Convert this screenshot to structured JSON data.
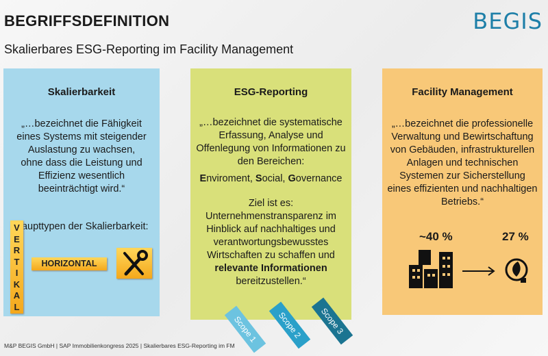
{
  "header": {
    "title": "BEGRIFFSDEFINITION",
    "subtitle": "Skalierbares ESG-Reporting im Facility Management",
    "logo": "BEGIS"
  },
  "panels": {
    "scalability": {
      "heading": "Skalierbarkeit",
      "text": "„…bezeichnet die Fähigkeit eines Systems mit steigender Auslastung zu wachsen, ohne dass die Leistung und Effizienz wesentlich beeinträchtigt wird.“",
      "types_label": "Haupttypen der Skalierbarkeit:",
      "vertical": "VERTIKAL",
      "horizontal": "HORIZONTAL",
      "color": "#a7d8ec"
    },
    "esg": {
      "heading": "ESG-Reporting",
      "text": "„…bezeichnet die systematische Erfassung, Analyse und Offenlegung von Informationen zu den Bereichen:",
      "e": "E",
      "e_rest": "nviroment, ",
      "s": "S",
      "s_rest": "ocial, ",
      "g": "G",
      "g_rest": "overnance",
      "goal": "Ziel ist es: Unternehmenstransparenz im Hinblick auf nachhaltiges und verantwortungsbewusstes Wirtschaften zu schaffen und",
      "goal_bold": "relevante Informationen",
      "goal_end": "bereitzustellen.“",
      "color": "#d9e07a"
    },
    "fm": {
      "heading": "Facility Management",
      "text": "„…bezeichnet die professionelle Verwaltung und Bewirtschaftung von Gebäuden, infrastrukturellen Anlagen und technischen Systemen zur Sicherstellung eines effizienten und nachhaltigen Betriebs.“",
      "stat_buildings": "~40 %",
      "stat_energy": "27 %",
      "color": "#f8c878"
    }
  },
  "scopes": [
    "Scope 1",
    "Scope 2",
    "Scope 3"
  ],
  "footer": "M&P BEGIS GmbH | SAP Immobilienkongress 2025 | Skalierbares ESG-Reporting im FM"
}
